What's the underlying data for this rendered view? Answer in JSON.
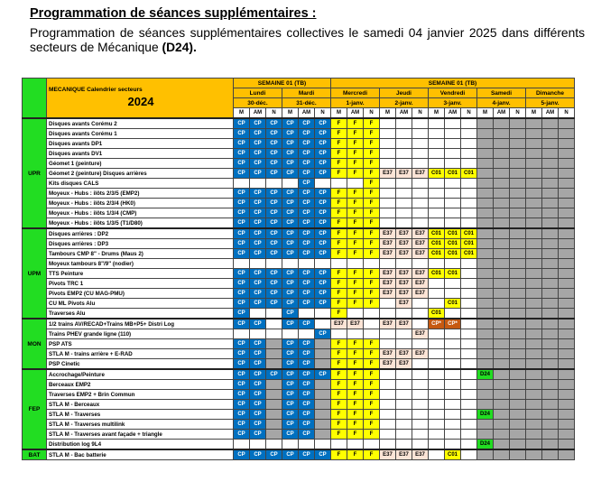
{
  "heading": {
    "title": "Programmation de séances supplémentaires :",
    "desc": "Programmation de séances supplémentaires collectives le samedi 04 janvier 2025 dans différents secteurs de Mécanique",
    "desc_bold": "(D24)."
  },
  "table": {
    "header_title": "MECANIQUE Calendrier secteurs",
    "header_year": "2024",
    "weeks": [
      "SEMAINE 01 (TB)",
      "SEMAINE 01 (TB)"
    ],
    "days": [
      "Lundi",
      "Mardi",
      "Mercredi",
      "Jeudi",
      "Vendredi",
      "Samedi",
      "Dimanche"
    ],
    "dates": [
      "30-déc.",
      "31-déc.",
      "1-janv.",
      "2-janv.",
      "3-janv.",
      "4-janv.",
      "5-janv."
    ],
    "shifts": [
      "M",
      "AM",
      "N"
    ],
    "groups": [
      {
        "label": "UPR",
        "rows": [
          {
            "name": "Disques avants Corému 2",
            "cells": [
              "CP",
              "CP",
              "CP",
              "CP",
              "CP",
              "CP",
              "F",
              "F",
              "F",
              "W",
              "W",
              "W",
              "W",
              "W",
              "W",
              "G",
              "G",
              "G",
              "G",
              "G",
              "G"
            ]
          },
          {
            "name": "Disques avants Corému 1",
            "cells": [
              "CP",
              "CP",
              "CP",
              "CP",
              "CP",
              "CP",
              "F",
              "F",
              "F",
              "W",
              "W",
              "W",
              "W",
              "W",
              "W",
              "G",
              "G",
              "G",
              "G",
              "G",
              "G"
            ]
          },
          {
            "name": "Disques avants DP1",
            "cells": [
              "CP",
              "CP",
              "CP",
              "CP",
              "CP",
              "CP",
              "F",
              "F",
              "F",
              "W",
              "W",
              "W",
              "W",
              "W",
              "W",
              "G",
              "G",
              "G",
              "G",
              "G",
              "G"
            ]
          },
          {
            "name": "Disques avants DV1",
            "cells": [
              "CP",
              "CP",
              "CP",
              "CP",
              "CP",
              "CP",
              "F",
              "F",
              "F",
              "W",
              "W",
              "W",
              "W",
              "W",
              "W",
              "G",
              "G",
              "G",
              "G",
              "G",
              "G"
            ]
          },
          {
            "name": "Géomet 1 (peinture)",
            "cells": [
              "CP",
              "CP",
              "CP",
              "CP",
              "CP",
              "CP",
              "F",
              "F",
              "F",
              "W",
              "W",
              "W",
              "W",
              "W",
              "W",
              "G",
              "G",
              "G",
              "G",
              "G",
              "G"
            ]
          },
          {
            "name": "Géomet 2 (peinture) Disques arrières",
            "cells": [
              "CP",
              "CP",
              "CP",
              "CP",
              "CP",
              "CP",
              "F",
              "F",
              "F",
              "E37",
              "E37",
              "E37",
              "C01",
              "C01",
              "C01",
              "G",
              "G",
              "G",
              "G",
              "G",
              "G"
            ]
          },
          {
            "name": "Kits disques CALS",
            "cells": [
              "W",
              "W",
              "W",
              "W",
              "CP",
              "W",
              "W",
              "W",
              "F",
              "W",
              "W",
              "W",
              "W",
              "W",
              "W",
              "G",
              "G",
              "G",
              "G",
              "G",
              "G"
            ]
          },
          {
            "name": "Moyeux - Hubs : ilôts 2/3/5 (EMP2)",
            "cells": [
              "CP",
              "CP",
              "CP",
              "CP",
              "CP",
              "CP",
              "F",
              "F",
              "F",
              "W",
              "W",
              "W",
              "W",
              "W",
              "W",
              "G",
              "G",
              "G",
              "G",
              "G",
              "G"
            ]
          },
          {
            "name": "Moyeux - Hubs : ilôts 2/3/4 (HK0)",
            "cells": [
              "CP",
              "CP",
              "CP",
              "CP",
              "CP",
              "CP",
              "F",
              "F",
              "F",
              "W",
              "W",
              "W",
              "W",
              "W",
              "W",
              "G",
              "G",
              "G",
              "G",
              "G",
              "G"
            ]
          },
          {
            "name": "Moyeux - Hubs : ilôts 1/3/4 (CMP)",
            "cells": [
              "CP",
              "CP",
              "CP",
              "CP",
              "CP",
              "CP",
              "F",
              "F",
              "F",
              "W",
              "W",
              "W",
              "W",
              "W",
              "W",
              "G",
              "G",
              "G",
              "G",
              "G",
              "G"
            ]
          },
          {
            "name": "Moyeux - Hubs : ilôts 1/3/5 (T1/D80)",
            "cells": [
              "CP",
              "CP",
              "CP",
              "CP",
              "CP",
              "CP",
              "F",
              "F",
              "F",
              "W",
              "W",
              "W",
              "W",
              "W",
              "W",
              "G",
              "G",
              "G",
              "G",
              "G",
              "G"
            ]
          }
        ]
      },
      {
        "label": "UPM",
        "rows": [
          {
            "name": "Disques arrières : DP2",
            "cells": [
              "CP",
              "CP",
              "CP",
              "CP",
              "CP",
              "CP",
              "F",
              "F",
              "F",
              "E37",
              "E37",
              "E37",
              "C01",
              "C01",
              "C01",
              "G",
              "G",
              "G",
              "G",
              "G",
              "G"
            ]
          },
          {
            "name": "Disques arrières : DP3",
            "cells": [
              "CP",
              "CP",
              "CP",
              "CP",
              "CP",
              "CP",
              "F",
              "F",
              "F",
              "E37",
              "E37",
              "E37",
              "C01",
              "C01",
              "C01",
              "G",
              "G",
              "G",
              "G",
              "G",
              "G"
            ]
          },
          {
            "name": "Tambours CMP 8\" - Drums (Maus 2)",
            "cells": [
              "CP",
              "CP",
              "CP",
              "CP",
              "CP",
              "CP",
              "F",
              "F",
              "F",
              "E37",
              "E37",
              "E37",
              "C01",
              "C01",
              "C01",
              "G",
              "G",
              "G",
              "G",
              "G",
              "G"
            ]
          },
          {
            "name": "Moyeux tambours 8\"/9\" (nodier)",
            "cells": [
              "W",
              "W",
              "W",
              "W",
              "W",
              "W",
              "W",
              "W",
              "W",
              "W",
              "W",
              "W",
              "W",
              "W",
              "W",
              "G",
              "G",
              "G",
              "G",
              "G",
              "G"
            ]
          },
          {
            "name": "TTS Peinture",
            "cells": [
              "CP",
              "CP",
              "CP",
              "CP",
              "CP",
              "CP",
              "F",
              "F",
              "F",
              "E37",
              "E37",
              "E37",
              "C01",
              "C01",
              "W",
              "G",
              "G",
              "G",
              "G",
              "G",
              "G"
            ]
          },
          {
            "name": "Pivots TRC 1",
            "cells": [
              "CP",
              "CP",
              "CP",
              "CP",
              "CP",
              "CP",
              "F",
              "F",
              "F",
              "E37",
              "E37",
              "E37",
              "W",
              "W",
              "W",
              "G",
              "G",
              "G",
              "G",
              "G",
              "G"
            ]
          },
          {
            "name": "Pivots EMP2 (CU MAG-PMU)",
            "cells": [
              "CP",
              "CP",
              "CP",
              "CP",
              "CP",
              "CP",
              "F",
              "F",
              "F",
              "E37",
              "E37",
              "E37",
              "W",
              "W",
              "W",
              "G",
              "G",
              "G",
              "G",
              "G",
              "G"
            ]
          },
          {
            "name": "CU ML Pivots Alu",
            "cells": [
              "CP",
              "CP",
              "CP",
              "CP",
              "CP",
              "CP",
              "F",
              "F",
              "F",
              "W",
              "E37",
              "W",
              "W",
              "C01",
              "W",
              "G",
              "G",
              "G",
              "G",
              "G",
              "G"
            ]
          },
          {
            "name": "Traverses Alu",
            "cells": [
              "CP",
              "W",
              "W",
              "CP",
              "W",
              "W",
              "F",
              "W",
              "W",
              "W",
              "W",
              "W",
              "C01",
              "W",
              "W",
              "G",
              "G",
              "G",
              "G",
              "G",
              "G"
            ]
          }
        ]
      },
      {
        "label": "MON",
        "rows": [
          {
            "name": "1/2 trains AV/RECAD+Trains MB+P5+ Distri Log",
            "cells": [
              "CP",
              "CP",
              "W",
              "CP",
              "CP",
              "W",
              "E37",
              "E37",
              "W",
              "E37",
              "E37",
              "W",
              "CPs",
              "CPs",
              "W",
              "G",
              "G",
              "G",
              "G",
              "G",
              "G"
            ]
          },
          {
            "name": "Trains PHEV grande ligne (110)",
            "cells": [
              "W",
              "W",
              "W",
              "W",
              "W",
              "CP",
              "W",
              "W",
              "W",
              "W",
              "W",
              "E37",
              "W",
              "W",
              "W",
              "G",
              "G",
              "G",
              "G",
              "G",
              "G"
            ]
          },
          {
            "name": "PSP ATS",
            "cells": [
              "CP",
              "CP",
              "G",
              "CP",
              "CP",
              "G",
              "F",
              "F",
              "F",
              "W",
              "W",
              "W",
              "W",
              "W",
              "W",
              "G",
              "G",
              "G",
              "G",
              "G",
              "G"
            ]
          },
          {
            "name": "STLA M - trains arrière + E-RAD",
            "cells": [
              "CP",
              "CP",
              "G",
              "CP",
              "CP",
              "G",
              "F",
              "F",
              "F",
              "E37",
              "E37",
              "E37",
              "W",
              "W",
              "W",
              "G",
              "G",
              "G",
              "G",
              "G",
              "G"
            ]
          },
          {
            "name": "PSP Cinetic",
            "cells": [
              "CP",
              "CP",
              "G",
              "CP",
              "CP",
              "G",
              "F",
              "F",
              "F",
              "E37",
              "E37",
              "W",
              "W",
              "W",
              "W",
              "G",
              "G",
              "G",
              "G",
              "G",
              "G"
            ]
          }
        ]
      },
      {
        "label": "FEP",
        "rows": [
          {
            "name": "Accrochage/Peinture",
            "cells": [
              "CP",
              "CP",
              "CP",
              "CP",
              "CP",
              "CP",
              "F",
              "F",
              "F",
              "W",
              "W",
              "W",
              "W",
              "W",
              "W",
              "D24",
              "G",
              "G",
              "G",
              "G",
              "G"
            ]
          },
          {
            "name": "Berceaux EMP2",
            "cells": [
              "CP",
              "CP",
              "G",
              "CP",
              "CP",
              "G",
              "F",
              "F",
              "F",
              "W",
              "W",
              "W",
              "W",
              "W",
              "W",
              "G",
              "G",
              "G",
              "G",
              "G",
              "G"
            ]
          },
          {
            "name": "Traverses EMP2 + Brin Commun",
            "cells": [
              "CP",
              "CP",
              "G",
              "CP",
              "CP",
              "G",
              "F",
              "F",
              "F",
              "W",
              "W",
              "W",
              "W",
              "W",
              "W",
              "G",
              "G",
              "G",
              "G",
              "G",
              "G"
            ]
          },
          {
            "name": "STLA M - Berceaux",
            "cells": [
              "CP",
              "CP",
              "G",
              "CP",
              "CP",
              "G",
              "F",
              "F",
              "F",
              "W",
              "W",
              "W",
              "W",
              "W",
              "W",
              "G",
              "G",
              "G",
              "G",
              "G",
              "G"
            ]
          },
          {
            "name": "STLA M - Traverses",
            "cells": [
              "CP",
              "CP",
              "G",
              "CP",
              "CP",
              "G",
              "F",
              "F",
              "F",
              "W",
              "W",
              "W",
              "W",
              "W",
              "W",
              "D24",
              "G",
              "G",
              "G",
              "G",
              "G"
            ]
          },
          {
            "name": "STLA M - Traverses multilink",
            "cells": [
              "CP",
              "CP",
              "G",
              "CP",
              "CP",
              "G",
              "F",
              "F",
              "F",
              "W",
              "W",
              "W",
              "W",
              "W",
              "W",
              "G",
              "G",
              "G",
              "G",
              "G",
              "G"
            ]
          },
          {
            "name": "STLA M - Traverses avant façade + triangle",
            "cells": [
              "CP",
              "CP",
              "G",
              "CP",
              "CP",
              "G",
              "F",
              "F",
              "F",
              "W",
              "W",
              "W",
              "W",
              "W",
              "W",
              "G",
              "G",
              "G",
              "G",
              "G",
              "G"
            ]
          },
          {
            "name": "Distribution log 9L4",
            "cells": [
              "W",
              "W",
              "W",
              "W",
              "W",
              "W",
              "W",
              "W",
              "W",
              "W",
              "W",
              "W",
              "W",
              "W",
              "W",
              "D24",
              "G",
              "G",
              "G",
              "G",
              "G"
            ]
          }
        ]
      },
      {
        "label": "BAT",
        "rows": [
          {
            "name": "STLA M - Bac batterie",
            "cells": [
              "CP",
              "CP",
              "CP",
              "CP",
              "CP",
              "CP",
              "F",
              "F",
              "F",
              "E37",
              "E37",
              "E37",
              "W",
              "C01",
              "W",
              "G",
              "G",
              "G",
              "G",
              "G",
              "G"
            ]
          }
        ]
      }
    ],
    "code_labels": {
      "CP": "CP",
      "F": "F",
      "E37": "E37",
      "C01": "C01",
      "CPs": "CP*",
      "D24": "D24",
      "G": "",
      "W": ""
    }
  }
}
